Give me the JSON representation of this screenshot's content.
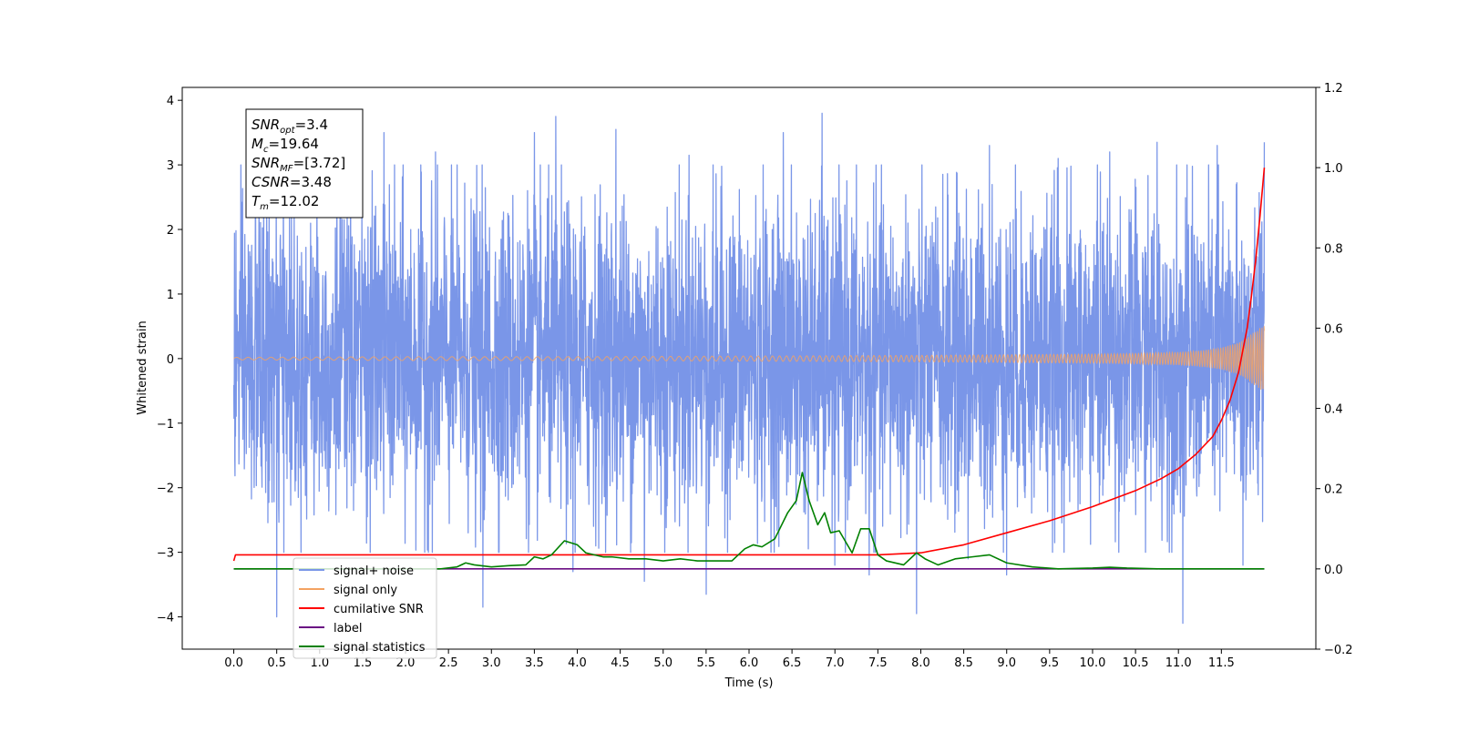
{
  "chart_data": {
    "type": "line",
    "xlabel": "Time (s)",
    "ylabel": "Whitened strain",
    "xlim": [
      -0.6,
      12.6
    ],
    "ylim": [
      -4.5,
      4.2
    ],
    "y2lim": [
      -0.2,
      1.2
    ],
    "x_ticks": [
      0.0,
      0.5,
      1.0,
      1.5,
      2.0,
      2.5,
      3.0,
      3.5,
      4.0,
      4.5,
      5.0,
      5.5,
      6.0,
      6.5,
      7.0,
      7.5,
      8.0,
      8.5,
      9.0,
      9.5,
      10.0,
      10.5,
      11.0,
      11.5
    ],
    "x_tick_labels": [
      "0.0",
      "0.5",
      "1.0",
      "1.5",
      "2.0",
      "2.5",
      "3.0",
      "3.5",
      "4.0",
      "4.5",
      "5.0",
      "5.5",
      "6.0",
      "6.5",
      "7.0",
      "7.5",
      "8.0",
      "8.5",
      "9.0",
      "9.5",
      "10.0",
      "10.5",
      "11.0",
      "11.5"
    ],
    "y_ticks": [
      -4,
      -3,
      -2,
      -1,
      0,
      1,
      2,
      3,
      4
    ],
    "y_tick_labels": [
      "−4",
      "−3",
      "−2",
      "−1",
      "0",
      "1",
      "2",
      "3",
      "4"
    ],
    "y2_ticks": [
      -0.2,
      0.0,
      0.2,
      0.4,
      0.6,
      0.8,
      1.0,
      1.2
    ],
    "y2_tick_labels": [
      "−0.2",
      "0.0",
      "0.2",
      "0.4",
      "0.6",
      "0.8",
      "1.0",
      "1.2"
    ],
    "grid": false,
    "legend_position": "lower-left",
    "annotation": {
      "lines": [
        {
          "sym": "SNR",
          "sub": "opt",
          "val": "=3.4"
        },
        {
          "sym": "M",
          "sub": "c",
          "val": "=19.64"
        },
        {
          "sym": "SNR",
          "sub": "MF",
          "val": "=[3.72]"
        },
        {
          "sym": "CSNR",
          "sub": "",
          "val": "=3.48"
        },
        {
          "sym": "T",
          "sub": "m",
          "val": "=12.02"
        }
      ]
    },
    "series": [
      {
        "name": "signal+ noise",
        "axis": "left",
        "color": "#7a96e8",
        "kind": "noise",
        "x_start": 0.0,
        "x_end": 12.0,
        "amplitude_band": [
          -2.4,
          2.4
        ],
        "peaks": [
          [
            0.5,
            -4.0
          ],
          [
            1.75,
            3.5
          ],
          [
            2.9,
            -3.85
          ],
          [
            3.75,
            3.75
          ],
          [
            3.5,
            3.5
          ],
          [
            4.45,
            3.55
          ],
          [
            4.78,
            -3.45
          ],
          [
            5.5,
            -3.65
          ],
          [
            6.85,
            3.8
          ],
          [
            6.4,
            3.5
          ],
          [
            7.0,
            -3.2
          ],
          [
            7.4,
            -3.35
          ],
          [
            7.95,
            -3.95
          ],
          [
            8.8,
            3.3
          ],
          [
            9.0,
            -3.35
          ],
          [
            10.2,
            3.2
          ],
          [
            10.75,
            3.35
          ],
          [
            11.05,
            -4.1
          ],
          [
            11.45,
            3.3
          ],
          [
            11.75,
            -3.2
          ],
          [
            12.0,
            3.35
          ],
          [
            1.2,
            3.1
          ],
          [
            2.35,
            3.2
          ],
          [
            5.3,
            3.15
          ],
          [
            9.6,
            3.1
          ],
          [
            3.95,
            -3.3
          ],
          [
            8.55,
            -3.1
          ]
        ]
      },
      {
        "name": "signal only",
        "axis": "left",
        "color": "#f4a261",
        "kind": "chirp",
        "x": [
          0,
          2,
          4,
          6,
          8,
          9,
          10,
          10.5,
          11,
          11.3,
          11.5,
          11.7,
          11.8,
          11.9,
          12.0
        ],
        "envelope": [
          0.02,
          0.03,
          0.03,
          0.04,
          0.05,
          0.06,
          0.07,
          0.08,
          0.1,
          0.13,
          0.17,
          0.25,
          0.33,
          0.43,
          0.52
        ]
      },
      {
        "name": "cumilative SNR",
        "axis": "right",
        "color": "#ff0000",
        "x": [
          0,
          0.02,
          2,
          4,
          6,
          7.5,
          8.0,
          8.5,
          9.0,
          9.5,
          10.0,
          10.5,
          10.8,
          11.0,
          11.2,
          11.4,
          11.5,
          11.6,
          11.7,
          11.8,
          11.85,
          11.9,
          11.95,
          12.0
        ],
        "values": [
          0.02,
          0.035,
          0.035,
          0.035,
          0.035,
          0.035,
          0.04,
          0.06,
          0.09,
          0.12,
          0.155,
          0.195,
          0.225,
          0.25,
          0.285,
          0.33,
          0.37,
          0.42,
          0.49,
          0.6,
          0.68,
          0.77,
          0.88,
          1.0
        ]
      },
      {
        "name": "label",
        "axis": "right",
        "color": "#6a0d83",
        "x": [
          0,
          12.0
        ],
        "values": [
          0.0,
          0.0
        ]
      },
      {
        "name": "signal statistics",
        "axis": "right",
        "color": "#008000",
        "x": [
          0,
          2.4,
          2.6,
          2.7,
          2.8,
          3.0,
          3.2,
          3.4,
          3.5,
          3.6,
          3.7,
          3.85,
          4.0,
          4.1,
          4.3,
          4.4,
          4.6,
          4.8,
          5.0,
          5.2,
          5.4,
          5.6,
          5.8,
          5.95,
          6.05,
          6.15,
          6.3,
          6.45,
          6.55,
          6.62,
          6.7,
          6.8,
          6.88,
          6.95,
          7.05,
          7.2,
          7.3,
          7.4,
          7.5,
          7.6,
          7.8,
          7.95,
          8.05,
          8.2,
          8.4,
          8.6,
          8.8,
          9.0,
          9.3,
          9.6,
          10.0,
          10.2,
          10.4,
          10.8,
          11.5,
          12.0
        ],
        "values": [
          0.0,
          0.0,
          0.005,
          0.015,
          0.01,
          0.005,
          0.008,
          0.01,
          0.03,
          0.025,
          0.035,
          0.07,
          0.06,
          0.04,
          0.03,
          0.03,
          0.025,
          0.025,
          0.02,
          0.025,
          0.02,
          0.02,
          0.02,
          0.05,
          0.06,
          0.055,
          0.075,
          0.14,
          0.17,
          0.24,
          0.17,
          0.11,
          0.14,
          0.09,
          0.095,
          0.04,
          0.1,
          0.1,
          0.035,
          0.02,
          0.01,
          0.04,
          0.025,
          0.01,
          0.025,
          0.03,
          0.035,
          0.015,
          0.005,
          0.0,
          0.002,
          0.004,
          0.002,
          0.0,
          0.0,
          0.0
        ]
      }
    ]
  }
}
